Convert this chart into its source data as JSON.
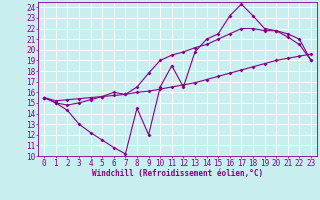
{
  "xlabel": "Windchill (Refroidissement éolien,°C)",
  "bg_color": "#c8eef0",
  "grid_color": "#ffffff",
  "line_color": "#880088",
  "spine_color": "#6600aa",
  "xlim": [
    -0.5,
    23.5
  ],
  "ylim": [
    10,
    24.5
  ],
  "xticks": [
    0,
    1,
    2,
    3,
    4,
    5,
    6,
    7,
    8,
    9,
    10,
    11,
    12,
    13,
    14,
    15,
    16,
    17,
    18,
    19,
    20,
    21,
    22,
    23
  ],
  "yticks": [
    10,
    11,
    12,
    13,
    14,
    15,
    16,
    17,
    18,
    19,
    20,
    21,
    22,
    23,
    24
  ],
  "line1_x": [
    0,
    1,
    2,
    3,
    4,
    5,
    6,
    7,
    8,
    9,
    10,
    11,
    12,
    13,
    14,
    15,
    16,
    17,
    18,
    19,
    20,
    21,
    22,
    23
  ],
  "line1_y": [
    15.5,
    15.0,
    14.3,
    13.0,
    12.2,
    11.5,
    10.8,
    10.2,
    14.5,
    12.0,
    16.5,
    18.5,
    16.5,
    19.8,
    21.0,
    21.5,
    23.2,
    24.3,
    23.2,
    22.0,
    21.8,
    21.2,
    20.5,
    19.0
  ],
  "line2_x": [
    0,
    1,
    2,
    3,
    4,
    5,
    6,
    7,
    8,
    9,
    10,
    11,
    12,
    13,
    14,
    15,
    16,
    17,
    18,
    19,
    20,
    21,
    22,
    23
  ],
  "line2_y": [
    15.5,
    15.2,
    15.3,
    15.4,
    15.5,
    15.6,
    15.7,
    15.8,
    16.0,
    16.1,
    16.3,
    16.5,
    16.7,
    16.9,
    17.2,
    17.5,
    17.8,
    18.1,
    18.4,
    18.7,
    19.0,
    19.2,
    19.4,
    19.6
  ],
  "line3_x": [
    0,
    1,
    2,
    3,
    4,
    5,
    6,
    7,
    8,
    9,
    10,
    11,
    12,
    13,
    14,
    15,
    16,
    17,
    18,
    19,
    20,
    21,
    22,
    23
  ],
  "line3_y": [
    15.5,
    15.0,
    14.8,
    15.0,
    15.3,
    15.6,
    16.0,
    15.8,
    16.5,
    17.8,
    19.0,
    19.5,
    19.8,
    20.2,
    20.5,
    21.0,
    21.5,
    22.0,
    22.0,
    21.8,
    21.8,
    21.5,
    21.0,
    19.0
  ],
  "tick_fontsize": 5.5,
  "xlabel_fontsize": 5.5
}
